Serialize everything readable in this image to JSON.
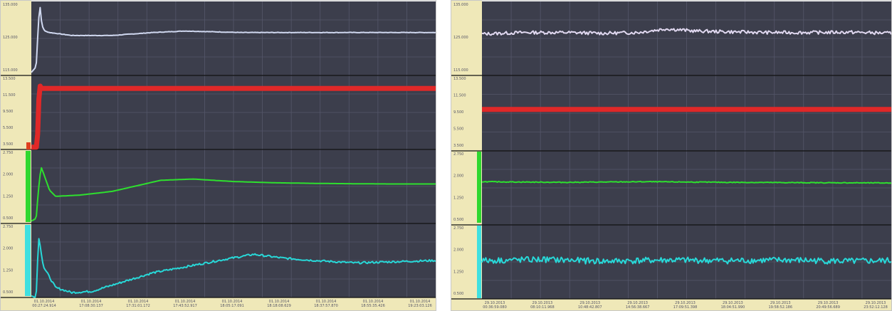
{
  "chart_data": [
    {
      "type": "line",
      "title": "",
      "lanes": [
        {
          "name": "",
          "color": "#d0d8f0",
          "ylim": [
            90,
            140
          ],
          "ticks": [
            "135.000",
            "125.000",
            "115.000"
          ],
          "points": [
            [
              0,
              92
            ],
            [
              0.012,
              96
            ],
            [
              0.018,
              128
            ],
            [
              0.022,
              136
            ],
            [
              0.026,
              124
            ],
            [
              0.033,
              120
            ],
            [
              0.045,
              119
            ],
            [
              0.1,
              117
            ],
            [
              0.2,
              117
            ],
            [
              0.3,
              119
            ],
            [
              0.38,
              120
            ],
            [
              0.45,
              119.5
            ],
            [
              0.52,
              119
            ],
            [
              0.6,
              119
            ],
            [
              0.7,
              119
            ],
            [
              0.8,
              119
            ],
            [
              0.9,
              119
            ],
            [
              1,
              119
            ]
          ]
        },
        {
          "name": "",
          "color": "#e02828",
          "ylim": [
            -2,
            14
          ],
          "ticks": [
            "13.500",
            "11.500",
            "9.500",
            "5.500",
            "3.500"
          ],
          "points": [
            [
              0,
              -1.5
            ],
            [
              0.014,
              -1.5
            ],
            [
              0.016,
              2
            ],
            [
              0.02,
              12
            ],
            [
              0.025,
              11.2
            ],
            [
              1,
              11.2
            ]
          ]
        },
        {
          "name": "",
          "color": "#2ee02e",
          "ylim": [
            -2,
            4
          ],
          "ticks": [
            "2.750",
            "2.000",
            "1.250",
            "0.500"
          ],
          "points": [
            [
              0,
              -1.8
            ],
            [
              0.012,
              -1.6
            ],
            [
              0.017,
              0.5
            ],
            [
              0.024,
              2.6
            ],
            [
              0.033,
              1.8
            ],
            [
              0.045,
              0.7
            ],
            [
              0.06,
              0.2
            ],
            [
              0.12,
              0.3
            ],
            [
              0.2,
              0.6
            ],
            [
              0.28,
              1.2
            ],
            [
              0.32,
              1.5
            ],
            [
              0.4,
              1.6
            ],
            [
              0.5,
              1.4
            ],
            [
              0.6,
              1.3
            ],
            [
              0.7,
              1.25
            ],
            [
              0.8,
              1.22
            ],
            [
              0.9,
              1.2
            ],
            [
              1,
              1.2
            ]
          ]
        },
        {
          "name": "",
          "color": "#28d8d8",
          "ylim": [
            -2,
            4
          ],
          "ticks": [
            "2.750",
            "2.000",
            "1.250",
            "0.500"
          ],
          "points": [
            [
              0,
              -1.9
            ],
            [
              0.012,
              -1.9
            ],
            [
              0.018,
              3.0
            ],
            [
              0.03,
              0.5
            ],
            [
              0.06,
              -1.2
            ],
            [
              0.1,
              -1.6
            ],
            [
              0.15,
              -1.5
            ],
            [
              0.2,
              -1.0
            ],
            [
              0.25,
              -0.5
            ],
            [
              0.3,
              0.0
            ],
            [
              0.4,
              0.6
            ],
            [
              0.48,
              1.1
            ],
            [
              0.55,
              1.5
            ],
            [
              0.62,
              1.2
            ],
            [
              0.7,
              1.0
            ],
            [
              0.8,
              0.8
            ],
            [
              0.9,
              0.9
            ],
            [
              1,
              1.0
            ]
          ]
        }
      ],
      "x_ticks": [
        [
          "01.10.2014",
          "00:27:24.914"
        ],
        [
          "01.10.2014",
          "17:08:30.137"
        ],
        [
          "01.10.2014",
          "17:31:01.172"
        ],
        [
          "01.10.2014",
          "17:43:52.917"
        ],
        [
          "01.10.2014",
          "18:05:17.091"
        ],
        [
          "01.10.2014",
          "18:18:08.629"
        ],
        [
          "01.10.2014",
          "18:37:57.870"
        ],
        [
          "01.10.2014",
          "18:55:35.426"
        ],
        [
          "01.10.2014",
          "19:23:03.126"
        ]
      ]
    },
    {
      "type": "line",
      "title": "",
      "lanes": [
        {
          "name": "",
          "color": "#e0d8f0",
          "ylim": [
            90,
            140
          ],
          "ticks": [
            "135.000",
            "125.000",
            "115.000"
          ],
          "points": [
            [
              0,
              118
            ],
            [
              0.1,
              119
            ],
            [
              0.2,
              119
            ],
            [
              0.3,
              118.5
            ],
            [
              0.38,
              119
            ],
            [
              0.45,
              121.5
            ],
            [
              0.52,
              120
            ],
            [
              0.6,
              119.5
            ],
            [
              0.7,
              119
            ],
            [
              0.8,
              119
            ],
            [
              0.9,
              119.2
            ],
            [
              1,
              118.5
            ]
          ]
        },
        {
          "name": "",
          "color": "#e02828",
          "ylim": [
            -2,
            14
          ],
          "ticks": [
            "13.500",
            "11.500",
            "9.500",
            "5.500",
            "3.500"
          ],
          "points": [
            [
              0,
              6.8
            ],
            [
              1,
              6.8
            ]
          ]
        },
        {
          "name": "",
          "color": "#2ee02e",
          "ylim": [
            -2,
            4
          ],
          "ticks": [
            "2.750",
            "2.000",
            "1.250",
            "0.500"
          ],
          "points": [
            [
              0,
              1.5
            ],
            [
              0.2,
              1.45
            ],
            [
              0.4,
              1.5
            ],
            [
              0.6,
              1.45
            ],
            [
              0.8,
              1.42
            ],
            [
              1,
              1.4
            ]
          ]
        },
        {
          "name": "",
          "color": "#28d8d8",
          "ylim": [
            -2,
            4
          ],
          "ticks": [
            "2.750",
            "2.000",
            "1.250",
            "0.500"
          ],
          "points": [
            [
              0,
              1.1
            ],
            [
              0.15,
              1.2
            ],
            [
              0.3,
              1.05
            ],
            [
              0.45,
              1.15
            ],
            [
              0.6,
              1.1
            ],
            [
              0.75,
              1.15
            ],
            [
              0.9,
              1.05
            ],
            [
              1,
              1.1
            ]
          ]
        }
      ],
      "x_ticks": [
        [
          "29.10.2013",
          "00:36:59.080"
        ],
        [
          "29.10.2013",
          "08:10:11.968"
        ],
        [
          "29.10.2013",
          "10:48:42.807"
        ],
        [
          "29.10.2013",
          "14:56:38.667"
        ],
        [
          "29.10.2013",
          "17:09:51.398"
        ],
        [
          "29.10.2013",
          "18:04:51.990"
        ],
        [
          "29.10.2013",
          "19:58:52.186"
        ],
        [
          "29.10.2013",
          "20:49:56.689"
        ],
        [
          "29.10.2013",
          "23:52:12.128"
        ]
      ]
    }
  ]
}
